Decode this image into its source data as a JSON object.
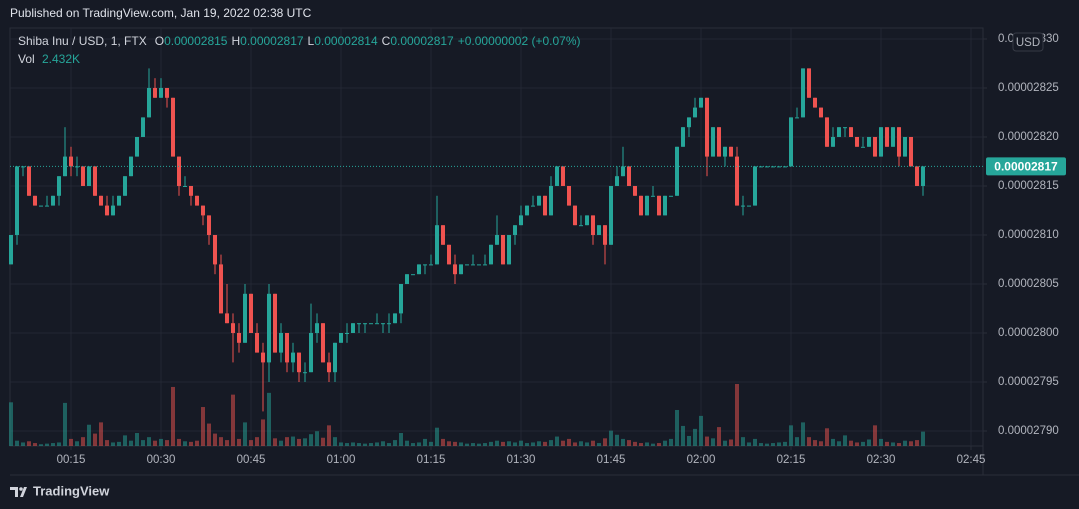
{
  "header": {
    "published": "Published on TradingView.com, Jan 19, 2022 02:38 UTC"
  },
  "footer": {
    "brand": "TradingView"
  },
  "chart_data": {
    "type": "candlestick",
    "symbol": "Shiba Inu / USD, 1, FTX",
    "ohlc_legend": [
      {
        "label": "O",
        "value": "0.00002815"
      },
      {
        "label": "H",
        "value": "0.00002817"
      },
      {
        "label": "L",
        "value": "0.00002814"
      },
      {
        "label": "C",
        "value": "0.00002817"
      }
    ],
    "change": "+0.00000002 (+0.07%)",
    "volume_label": "Vol",
    "volume_value": "2.432K",
    "currency": "USD",
    "last_price_label": "0.00002817",
    "up_color": "#26a69a",
    "down_color": "#ef5350",
    "grid": true,
    "xlim": [
      4.833,
      167
    ],
    "xticks": [
      {
        "value": 15,
        "label": "00:15"
      },
      {
        "value": 30,
        "label": "00:30"
      },
      {
        "value": 45,
        "label": "00:45"
      },
      {
        "value": 60,
        "label": "01:00"
      },
      {
        "value": 75,
        "label": "01:15"
      },
      {
        "value": 90,
        "label": "01:30"
      },
      {
        "value": 105,
        "label": "01:45"
      },
      {
        "value": 120,
        "label": "02:00"
      },
      {
        "value": 135,
        "label": "02:15"
      },
      {
        "value": 150,
        "label": "02:30"
      },
      {
        "value": 165,
        "label": "02:45"
      }
    ],
    "ylim": [
      2.78847e-05,
      2.83112e-05
    ],
    "yticks": [
      {
        "value": 2.79e-05,
        "label": "0.00002790"
      },
      {
        "value": 2.795e-05,
        "label": "0.00002795"
      },
      {
        "value": 2.8e-05,
        "label": "0.00002800"
      },
      {
        "value": 2.805e-05,
        "label": "0.00002805"
      },
      {
        "value": 2.81e-05,
        "label": "0.00002810"
      },
      {
        "value": 2.815e-05,
        "label": "0.00002815"
      },
      {
        "value": 2.82e-05,
        "label": "0.00002820"
      },
      {
        "value": 2.825e-05,
        "label": "0.00002825"
      },
      {
        "value": 2.83e-05,
        "label": "0.00002830"
      }
    ],
    "x": [
      5,
      6,
      7,
      8,
      9,
      10,
      11,
      12,
      13,
      14,
      15,
      16,
      17,
      18,
      19,
      20,
      21,
      22,
      23,
      24,
      25,
      26,
      27,
      28,
      29,
      30,
      31,
      32,
      33,
      34,
      35,
      36,
      37,
      38,
      39,
      40,
      41,
      42,
      43,
      44,
      45,
      46,
      47,
      48,
      49,
      50,
      51,
      52,
      53,
      54,
      55,
      56,
      57,
      58,
      59,
      60,
      61,
      62,
      63,
      64,
      65,
      66,
      67,
      68,
      69,
      70,
      71,
      72,
      73,
      74,
      75,
      76,
      77,
      78,
      79,
      80,
      81,
      82,
      83,
      84,
      85,
      86,
      87,
      88,
      89,
      90,
      91,
      92,
      93,
      94,
      95,
      96,
      97,
      98,
      99,
      100,
      101,
      102,
      103,
      104,
      105,
      106,
      107,
      108,
      109,
      110,
      111,
      112,
      113,
      114,
      115,
      116,
      117,
      118,
      119,
      120,
      121,
      122,
      123,
      124,
      125,
      126,
      127,
      128,
      129,
      130,
      131,
      132,
      133,
      134,
      135,
      136,
      137,
      138,
      139,
      140,
      141,
      142,
      143,
      144,
      145,
      146,
      147,
      148,
      149,
      150,
      151,
      152,
      153,
      154,
      155,
      156,
      157
    ],
    "ohlc": [
      [
        2.807e-05,
        2.81e-05,
        2.807e-05,
        2.81e-05
      ],
      [
        2.81e-05,
        2.817e-05,
        2.809e-05,
        2.817e-05
      ],
      [
        2.817e-05,
        2.817e-05,
        2.816e-05,
        2.817e-05
      ],
      [
        2.817e-05,
        2.817e-05,
        2.814e-05,
        2.814e-05
      ],
      [
        2.814e-05,
        2.814e-05,
        2.813e-05,
        2.813e-05
      ],
      [
        2.813e-05,
        2.813e-05,
        2.813e-05,
        2.813e-05
      ],
      [
        2.813e-05,
        2.814e-05,
        2.813e-05,
        2.813e-05
      ],
      [
        2.813e-05,
        2.814e-05,
        2.813e-05,
        2.814e-05
      ],
      [
        2.814e-05,
        2.816e-05,
        2.813e-05,
        2.816e-05
      ],
      [
        2.816e-05,
        2.821e-05,
        2.816e-05,
        2.818e-05
      ],
      [
        2.818e-05,
        2.819e-05,
        2.816e-05,
        2.817e-05
      ],
      [
        2.817e-05,
        2.818e-05,
        2.816e-05,
        2.817e-05
      ],
      [
        2.817e-05,
        2.817e-05,
        2.815e-05,
        2.815e-05
      ],
      [
        2.815e-05,
        2.817e-05,
        2.815e-05,
        2.817e-05
      ],
      [
        2.817e-05,
        2.817e-05,
        2.814e-05,
        2.814e-05
      ],
      [
        2.814e-05,
        2.814e-05,
        2.813e-05,
        2.813e-05
      ],
      [
        2.813e-05,
        2.814e-05,
        2.812e-05,
        2.812e-05
      ],
      [
        2.812e-05,
        2.814e-05,
        2.812e-05,
        2.813e-05
      ],
      [
        2.813e-05,
        2.814e-05,
        2.813e-05,
        2.814e-05
      ],
      [
        2.814e-05,
        2.816e-05,
        2.814e-05,
        2.816e-05
      ],
      [
        2.816e-05,
        2.818e-05,
        2.816e-05,
        2.818e-05
      ],
      [
        2.818e-05,
        2.82e-05,
        2.818e-05,
        2.82e-05
      ],
      [
        2.82e-05,
        2.822e-05,
        2.82e-05,
        2.822e-05
      ],
      [
        2.822e-05,
        2.827e-05,
        2.822e-05,
        2.825e-05
      ],
      [
        2.825e-05,
        2.826e-05,
        2.824e-05,
        2.824e-05
      ],
      [
        2.824e-05,
        2.826e-05,
        2.824e-05,
        2.825e-05
      ],
      [
        2.825e-05,
        2.825e-05,
        2.823e-05,
        2.824e-05
      ],
      [
        2.824e-05,
        2.824e-05,
        2.818e-05,
        2.818e-05
      ],
      [
        2.818e-05,
        2.818e-05,
        2.814e-05,
        2.815e-05
      ],
      [
        2.815e-05,
        2.816e-05,
        2.815e-05,
        2.815e-05
      ],
      [
        2.815e-05,
        2.815e-05,
        2.813e-05,
        2.814e-05
      ],
      [
        2.814e-05,
        2.814e-05,
        2.813e-05,
        2.813e-05
      ],
      [
        2.813e-05,
        2.813e-05,
        2.811e-05,
        2.812e-05
      ],
      [
        2.812e-05,
        2.812e-05,
        2.809e-05,
        2.81e-05
      ],
      [
        2.81e-05,
        2.81e-05,
        2.806e-05,
        2.807e-05
      ],
      [
        2.807e-05,
        2.808e-05,
        2.802e-05,
        2.802e-05
      ],
      [
        2.802e-05,
        2.805e-05,
        2.801e-05,
        2.801e-05
      ],
      [
        2.801e-05,
        2.802e-05,
        2.797e-05,
        2.8e-05
      ],
      [
        2.8e-05,
        2.801e-05,
        2.798e-05,
        2.799e-05
      ],
      [
        2.799e-05,
        2.805e-05,
        2.799e-05,
        2.804e-05
      ],
      [
        2.804e-05,
        2.804e-05,
        2.8e-05,
        2.8e-05
      ],
      [
        2.8e-05,
        2.801e-05,
        2.798e-05,
        2.798e-05
      ],
      [
        2.798e-05,
        2.799e-05,
        2.792e-05,
        2.797e-05
      ],
      [
        2.797e-05,
        2.805e-05,
        2.795e-05,
        2.804e-05
      ],
      [
        2.804e-05,
        2.804e-05,
        2.798e-05,
        2.798e-05
      ],
      [
        2.798e-05,
        2.801e-05,
        2.797e-05,
        2.8e-05
      ],
      [
        2.8e-05,
        2.8e-05,
        2.796e-05,
        2.797e-05
      ],
      [
        2.797e-05,
        2.799e-05,
        2.796e-05,
        2.798e-05
      ],
      [
        2.798e-05,
        2.798e-05,
        2.795e-05,
        2.796e-05
      ],
      [
        2.796e-05,
        2.797e-05,
        2.795e-05,
        2.796e-05
      ],
      [
        2.796e-05,
        2.803e-05,
        2.796e-05,
        2.8e-05
      ],
      [
        2.8e-05,
        2.802e-05,
        2.799e-05,
        2.801e-05
      ],
      [
        2.801e-05,
        2.801e-05,
        2.797e-05,
        2.797e-05
      ],
      [
        2.797e-05,
        2.798e-05,
        2.795e-05,
        2.796e-05
      ],
      [
        2.796e-05,
        2.799e-05,
        2.795e-05,
        2.799e-05
      ],
      [
        2.799e-05,
        2.8e-05,
        2.799e-05,
        2.8e-05
      ],
      [
        2.8e-05,
        2.801e-05,
        2.799e-05,
        2.8e-05
      ],
      [
        2.8e-05,
        2.801e-05,
        2.8e-05,
        2.801e-05
      ],
      [
        2.801e-05,
        2.801e-05,
        2.8e-05,
        2.801e-05
      ],
      [
        2.801e-05,
        2.801e-05,
        2.8e-05,
        2.801e-05
      ],
      [
        2.801e-05,
        2.801e-05,
        2.801e-05,
        2.801e-05
      ],
      [
        2.801e-05,
        2.802e-05,
        2.801e-05,
        2.801e-05
      ],
      [
        2.801e-05,
        2.801e-05,
        2.8e-05,
        2.801e-05
      ],
      [
        2.801e-05,
        2.802e-05,
        2.8e-05,
        2.801e-05
      ],
      [
        2.801e-05,
        2.802e-05,
        2.801e-05,
        2.802e-05
      ],
      [
        2.802e-05,
        2.805e-05,
        2.801e-05,
        2.805e-05
      ],
      [
        2.805e-05,
        2.806e-05,
        2.805e-05,
        2.806e-05
      ],
      [
        2.806e-05,
        2.806e-05,
        2.806e-05,
        2.806e-05
      ],
      [
        2.806e-05,
        2.807e-05,
        2.806e-05,
        2.807e-05
      ],
      [
        2.807e-05,
        2.807e-05,
        2.806e-05,
        2.807e-05
      ],
      [
        2.807e-05,
        2.808e-05,
        2.807e-05,
        2.807e-05
      ],
      [
        2.807e-05,
        2.814e-05,
        2.807e-05,
        2.811e-05
      ],
      [
        2.811e-05,
        2.811e-05,
        2.809e-05,
        2.809e-05
      ],
      [
        2.809e-05,
        2.809e-05,
        2.807e-05,
        2.807e-05
      ],
      [
        2.807e-05,
        2.808e-05,
        2.805e-05,
        2.806e-05
      ],
      [
        2.806e-05,
        2.807e-05,
        2.806e-05,
        2.807e-05
      ],
      [
        2.807e-05,
        2.807e-05,
        2.807e-05,
        2.807e-05
      ],
      [
        2.807e-05,
        2.808e-05,
        2.807e-05,
        2.807e-05
      ],
      [
        2.807e-05,
        2.807e-05,
        2.807e-05,
        2.807e-05
      ],
      [
        2.807e-05,
        2.808e-05,
        2.807e-05,
        2.807e-05
      ],
      [
        2.807e-05,
        2.809e-05,
        2.807e-05,
        2.809e-05
      ],
      [
        2.809e-05,
        2.812e-05,
        2.809e-05,
        2.81e-05
      ],
      [
        2.81e-05,
        2.81e-05,
        2.807e-05,
        2.807e-05
      ],
      [
        2.807e-05,
        2.81e-05,
        2.807e-05,
        2.81e-05
      ],
      [
        2.81e-05,
        2.811e-05,
        2.809e-05,
        2.811e-05
      ],
      [
        2.811e-05,
        2.813e-05,
        2.811e-05,
        2.812e-05
      ],
      [
        2.812e-05,
        2.813e-05,
        2.812e-05,
        2.813e-05
      ],
      [
        2.813e-05,
        2.814e-05,
        2.813e-05,
        2.813e-05
      ],
      [
        2.813e-05,
        2.814e-05,
        2.813e-05,
        2.814e-05
      ],
      [
        2.814e-05,
        2.814e-05,
        2.812e-05,
        2.812e-05
      ],
      [
        2.812e-05,
        2.816e-05,
        2.812e-05,
        2.815e-05
      ],
      [
        2.815e-05,
        2.817e-05,
        2.815e-05,
        2.817e-05
      ],
      [
        2.817e-05,
        2.817e-05,
        2.815e-05,
        2.815e-05
      ],
      [
        2.815e-05,
        2.815e-05,
        2.813e-05,
        2.813e-05
      ],
      [
        2.813e-05,
        2.813e-05,
        2.811e-05,
        2.811e-05
      ],
      [
        2.811e-05,
        2.812e-05,
        2.811e-05,
        2.811e-05
      ],
      [
        2.811e-05,
        2.812e-05,
        2.811e-05,
        2.812e-05
      ],
      [
        2.812e-05,
        2.812e-05,
        2.809e-05,
        2.81e-05
      ],
      [
        2.81e-05,
        2.811e-05,
        2.81e-05,
        2.811e-05
      ],
      [
        2.811e-05,
        2.811e-05,
        2.807e-05,
        2.809e-05
      ],
      [
        2.809e-05,
        2.815e-05,
        2.809e-05,
        2.815e-05
      ],
      [
        2.815e-05,
        2.817e-05,
        2.815e-05,
        2.816e-05
      ],
      [
        2.816e-05,
        2.819e-05,
        2.816e-05,
        2.817e-05
      ],
      [
        2.817e-05,
        2.817e-05,
        2.815e-05,
        2.815e-05
      ],
      [
        2.815e-05,
        2.815e-05,
        2.814e-05,
        2.814e-05
      ],
      [
        2.814e-05,
        2.814e-05,
        2.812e-05,
        2.812e-05
      ],
      [
        2.812e-05,
        2.814e-05,
        2.812e-05,
        2.814e-05
      ],
      [
        2.814e-05,
        2.815e-05,
        2.814e-05,
        2.814e-05
      ],
      [
        2.814e-05,
        2.814e-05,
        2.812e-05,
        2.812e-05
      ],
      [
        2.812e-05,
        2.814e-05,
        2.812e-05,
        2.814e-05
      ],
      [
        2.814e-05,
        2.814e-05,
        2.814e-05,
        2.814e-05
      ],
      [
        2.814e-05,
        2.819e-05,
        2.814e-05,
        2.819e-05
      ],
      [
        2.819e-05,
        2.821e-05,
        2.819e-05,
        2.821e-05
      ],
      [
        2.821e-05,
        2.822e-05,
        2.82e-05,
        2.822e-05
      ],
      [
        2.822e-05,
        2.824e-05,
        2.822e-05,
        2.823e-05
      ],
      [
        2.823e-05,
        2.824e-05,
        2.823e-05,
        2.824e-05
      ],
      [
        2.824e-05,
        2.824e-05,
        2.816e-05,
        2.818e-05
      ],
      [
        2.818e-05,
        2.821e-05,
        2.818e-05,
        2.821e-05
      ],
      [
        2.821e-05,
        2.821e-05,
        2.818e-05,
        2.818e-05
      ],
      [
        2.818e-05,
        2.819e-05,
        2.817e-05,
        2.819e-05
      ],
      [
        2.819e-05,
        2.819e-05,
        2.818e-05,
        2.818e-05
      ],
      [
        2.818e-05,
        2.819e-05,
        2.813e-05,
        2.813e-05
      ],
      [
        2.813e-05,
        2.814e-05,
        2.812e-05,
        2.813e-05
      ],
      [
        2.813e-05,
        2.813e-05,
        2.813e-05,
        2.813e-05
      ],
      [
        2.813e-05,
        2.817e-05,
        2.813e-05,
        2.817e-05
      ],
      [
        2.817e-05,
        2.817e-05,
        2.817e-05,
        2.817e-05
      ],
      [
        2.817e-05,
        2.817e-05,
        2.817e-05,
        2.817e-05
      ],
      [
        2.817e-05,
        2.817e-05,
        2.817e-05,
        2.817e-05
      ],
      [
        2.817e-05,
        2.817e-05,
        2.817e-05,
        2.817e-05
      ],
      [
        2.817e-05,
        2.817e-05,
        2.817e-05,
        2.817e-05
      ],
      [
        2.817e-05,
        2.822e-05,
        2.817e-05,
        2.822e-05
      ],
      [
        2.822e-05,
        2.823e-05,
        2.822e-05,
        2.822e-05
      ],
      [
        2.822e-05,
        2.827e-05,
        2.822e-05,
        2.827e-05
      ],
      [
        2.827e-05,
        2.827e-05,
        2.824e-05,
        2.824e-05
      ],
      [
        2.824e-05,
        2.824e-05,
        2.823e-05,
        2.823e-05
      ],
      [
        2.823e-05,
        2.823e-05,
        2.822e-05,
        2.822e-05
      ],
      [
        2.822e-05,
        2.822e-05,
        2.819e-05,
        2.819e-05
      ],
      [
        2.819e-05,
        2.821e-05,
        2.819e-05,
        2.82e-05
      ],
      [
        2.82e-05,
        2.821e-05,
        2.82e-05,
        2.821e-05
      ],
      [
        2.821e-05,
        2.821e-05,
        2.82e-05,
        2.821e-05
      ],
      [
        2.821e-05,
        2.821e-05,
        2.82e-05,
        2.82e-05
      ],
      [
        2.82e-05,
        2.82e-05,
        2.819e-05,
        2.819e-05
      ],
      [
        2.819e-05,
        2.82e-05,
        2.819e-05,
        2.819e-05
      ],
      [
        2.819e-05,
        2.82e-05,
        2.819e-05,
        2.82e-05
      ],
      [
        2.82e-05,
        2.82e-05,
        2.818e-05,
        2.818e-05
      ],
      [
        2.818e-05,
        2.821e-05,
        2.818e-05,
        2.821e-05
      ],
      [
        2.821e-05,
        2.821e-05,
        2.819e-05,
        2.819e-05
      ],
      [
        2.819e-05,
        2.821e-05,
        2.819e-05,
        2.821e-05
      ],
      [
        2.821e-05,
        2.821e-05,
        2.817e-05,
        2.818e-05
      ],
      [
        2.818e-05,
        2.82e-05,
        2.818e-05,
        2.82e-05
      ],
      [
        2.82e-05,
        2.82e-05,
        2.817e-05,
        2.817e-05
      ],
      [
        2.817e-05,
        2.817e-05,
        2.815e-05,
        2.815e-05
      ],
      [
        2.815e-05,
        2.817e-05,
        2.814e-05,
        2.817e-05
      ]
    ],
    "volume": [
      7400,
      900,
      600,
      800,
      500,
      300,
      400,
      500,
      600,
      7300,
      1200,
      800,
      1500,
      3600,
      2100,
      4000,
      1000,
      600,
      700,
      1800,
      900,
      2200,
      1000,
      1500,
      900,
      1200,
      1000,
      10000,
      1200,
      800,
      700,
      900,
      6600,
      3800,
      2100,
      1500,
      1000,
      8700,
      1200,
      4000,
      1000,
      1500,
      4500,
      9000,
      1300,
      900,
      1500,
      1600,
      1200,
      1300,
      2000,
      2500,
      1400,
      3500,
      1500,
      600,
      500,
      600,
      500,
      400,
      500,
      600,
      800,
      500,
      1000,
      2200,
      900,
      500,
      600,
      1200,
      700,
      3100,
      1200,
      800,
      700,
      600,
      400,
      500,
      400,
      500,
      700,
      900,
      700,
      800,
      600,
      900,
      500,
      600,
      800,
      700,
      1000,
      1600,
      900,
      1200,
      600,
      800,
      600,
      900,
      500,
      1300,
      2600,
      1900,
      1200,
      1000,
      700,
      500,
      600,
      400,
      500,
      900,
      1200,
      6100,
      3400,
      1700,
      2900,
      5100,
      1600,
      1300,
      3200,
      900,
      1100,
      10500,
      1500,
      600,
      1200,
      500,
      400,
      500,
      600,
      700,
      3500,
      1500,
      4000,
      1500,
      1000,
      800,
      3000,
      1200,
      800,
      1800,
      900,
      600,
      700,
      1100,
      3500,
      1200,
      700,
      600,
      500,
      900,
      800,
      1000,
      2432
    ]
  }
}
